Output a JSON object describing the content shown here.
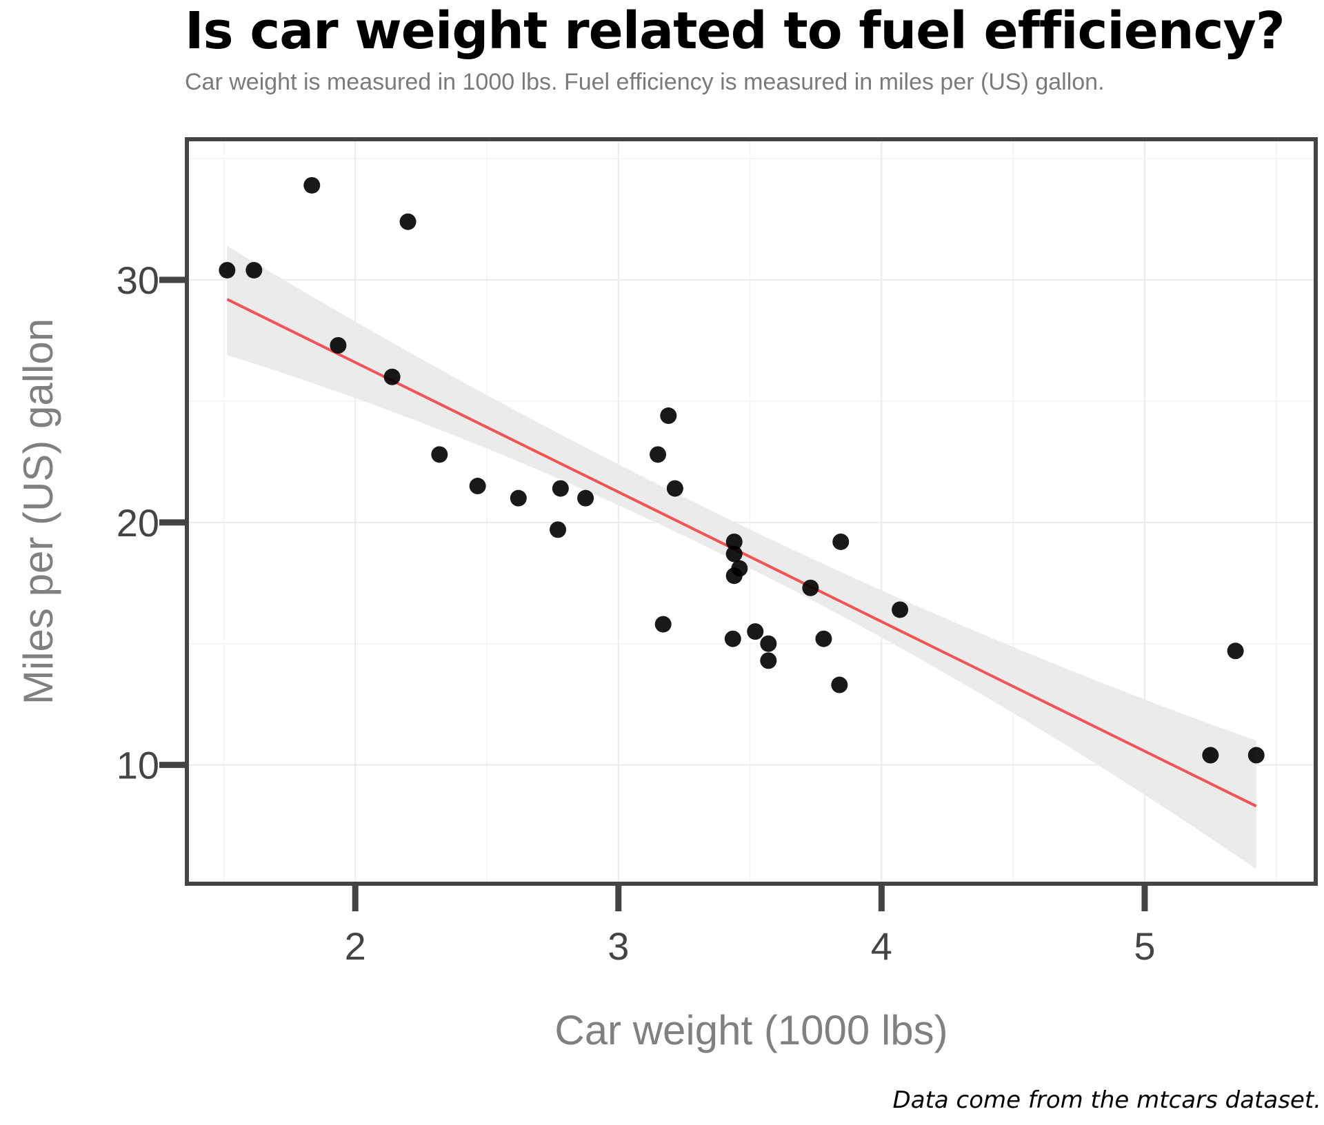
{
  "chart_data": {
    "type": "scatter",
    "title": "Is car weight related to fuel efficiency?",
    "subtitle": "Car weight is measured in 1000 lbs. Fuel efficiency is measured in miles per (US) gallon.",
    "caption": "Data come from the mtcars dataset.",
    "xlabel": "Car weight (1000 lbs)",
    "ylabel": "Miles per (US) gallon",
    "xlim": [
      1.36,
      5.65
    ],
    "ylim": [
      5.1,
      35.8
    ],
    "xticks": [
      2,
      3,
      4,
      5
    ],
    "yticks": [
      10,
      20,
      30
    ],
    "grid": true,
    "points": [
      {
        "x": 2.62,
        "y": 21.0
      },
      {
        "x": 2.875,
        "y": 21.0
      },
      {
        "x": 2.32,
        "y": 22.8
      },
      {
        "x": 3.215,
        "y": 21.4
      },
      {
        "x": 3.44,
        "y": 18.7
      },
      {
        "x": 3.46,
        "y": 18.1
      },
      {
        "x": 3.57,
        "y": 14.3
      },
      {
        "x": 3.19,
        "y": 24.4
      },
      {
        "x": 3.15,
        "y": 22.8
      },
      {
        "x": 3.44,
        "y": 19.2
      },
      {
        "x": 3.44,
        "y": 17.8
      },
      {
        "x": 4.07,
        "y": 16.4
      },
      {
        "x": 3.73,
        "y": 17.3
      },
      {
        "x": 3.78,
        "y": 15.2
      },
      {
        "x": 5.25,
        "y": 10.4
      },
      {
        "x": 5.424,
        "y": 10.4
      },
      {
        "x": 5.345,
        "y": 14.7
      },
      {
        "x": 2.2,
        "y": 32.4
      },
      {
        "x": 1.615,
        "y": 30.4
      },
      {
        "x": 1.835,
        "y": 33.9
      },
      {
        "x": 2.465,
        "y": 21.5
      },
      {
        "x": 3.52,
        "y": 15.5
      },
      {
        "x": 3.435,
        "y": 15.2
      },
      {
        "x": 3.84,
        "y": 13.3
      },
      {
        "x": 3.845,
        "y": 19.2
      },
      {
        "x": 1.935,
        "y": 27.3
      },
      {
        "x": 2.14,
        "y": 26.0
      },
      {
        "x": 1.513,
        "y": 30.4
      },
      {
        "x": 3.17,
        "y": 15.8
      },
      {
        "x": 2.77,
        "y": 19.7
      },
      {
        "x": 3.57,
        "y": 15.0
      },
      {
        "x": 2.78,
        "y": 21.4
      }
    ],
    "fit": {
      "type": "linear",
      "intercept": 37.285,
      "slope": -5.344,
      "x_range": [
        1.513,
        5.424
      ],
      "band_upper": [
        [
          1.513,
          31.4
        ],
        [
          3.2,
          21.3
        ],
        [
          5.424,
          11.0
        ]
      ],
      "band_lower": [
        [
          1.513,
          26.9
        ],
        [
          3.2,
          19.7
        ],
        [
          5.424,
          5.7
        ]
      ],
      "line_color": "#f05454",
      "band_color": "#ebebeb"
    },
    "point_color": "#000000",
    "frame_color": "#444444"
  }
}
